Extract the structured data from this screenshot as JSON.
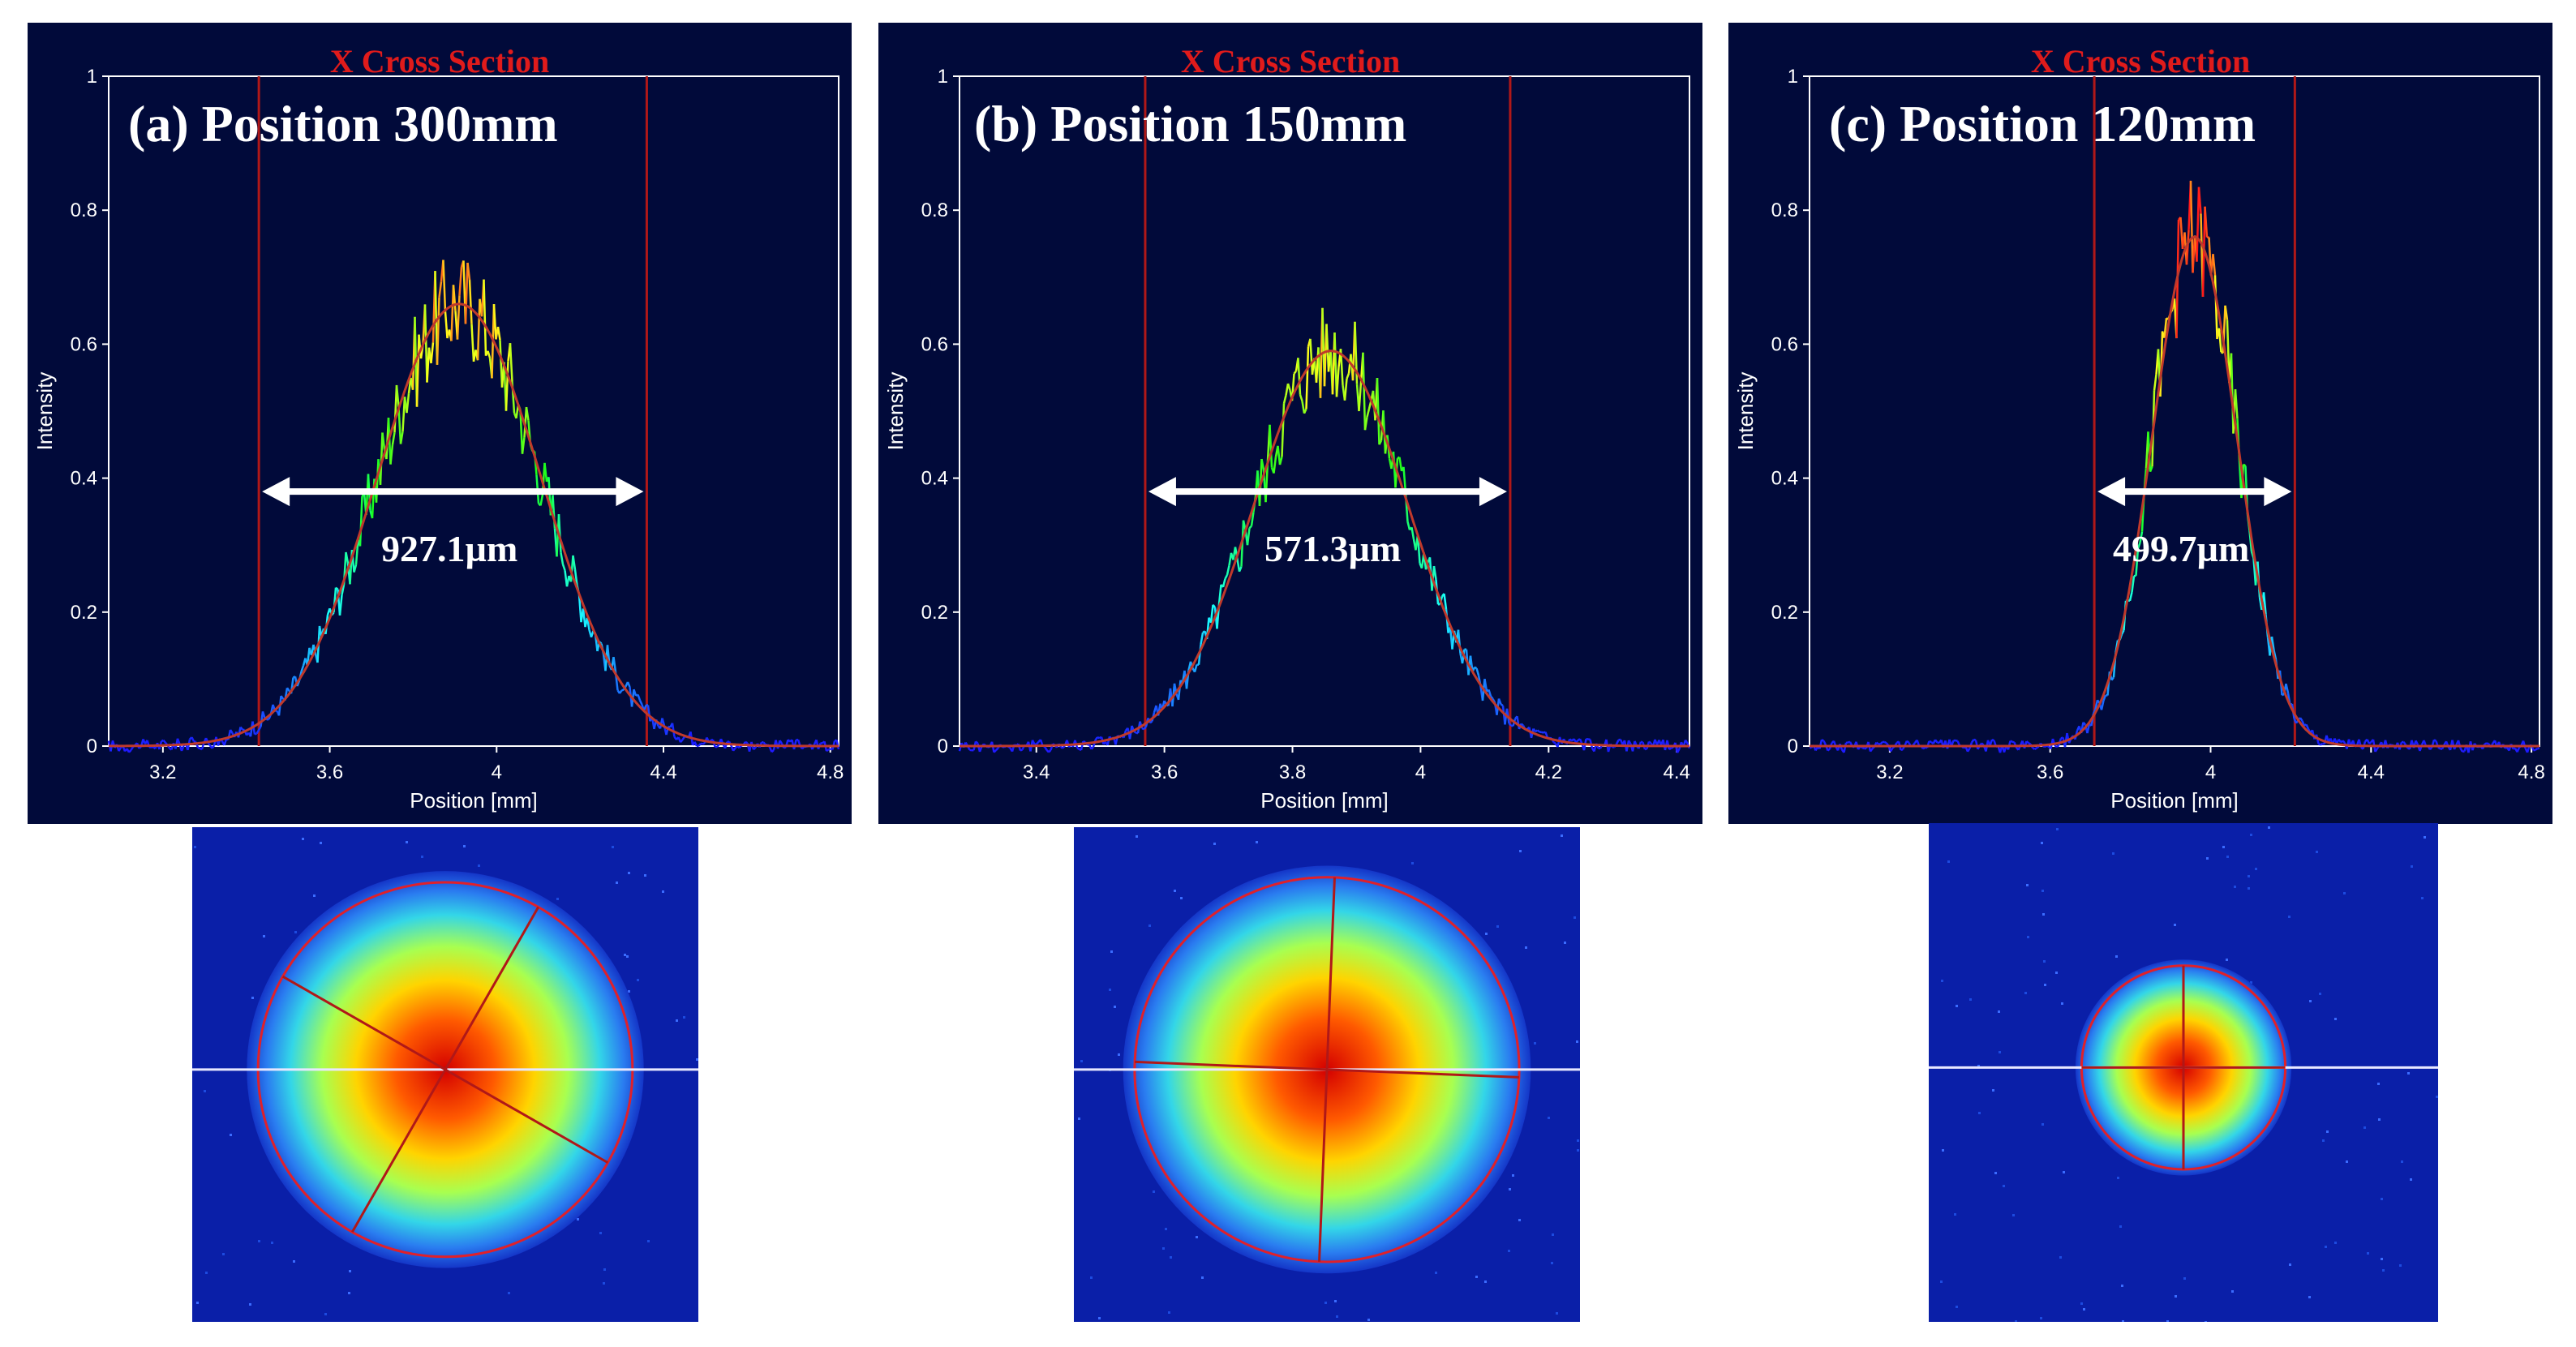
{
  "chart_data": [
    {
      "type": "line",
      "panel_label": "(a) Position 300mm",
      "title": "X Cross Section",
      "xlabel": "Position [mm]",
      "ylabel": "Intensity",
      "xlim": [
        3.07,
        4.82
      ],
      "ylim": [
        0,
        1
      ],
      "xticks": [
        "3.2",
        "3.6",
        "4",
        "4.4",
        "4.8"
      ],
      "yticks": [
        "0",
        "0.2",
        "0.4",
        "0.6",
        "0.8",
        "1"
      ],
      "gaussian": {
        "center": 3.91,
        "peak": 0.66,
        "sigma": 0.197
      },
      "cursor_lines": [
        3.43,
        4.36
      ],
      "arrow_y": 0.38,
      "width_label": "927.1µm",
      "beam_radius_fraction": 0.37
    },
    {
      "type": "line",
      "panel_label": "(b) Position 150mm",
      "title": "X Cross Section",
      "xlabel": "Position [mm]",
      "ylabel": "Intensity",
      "xlim": [
        3.28,
        4.42
      ],
      "ylim": [
        0,
        1
      ],
      "xticks": [
        "3.4",
        "3.6",
        "3.8",
        "4",
        "4.2",
        "4.4"
      ],
      "yticks": [
        "0",
        "0.2",
        "0.4",
        "0.6",
        "0.8",
        "1"
      ],
      "gaussian": {
        "center": 3.86,
        "peak": 0.59,
        "sigma": 0.121
      },
      "cursor_lines": [
        3.57,
        4.14
      ],
      "arrow_y": 0.38,
      "width_label": "571.3µm",
      "beam_radius_fraction": 0.38
    },
    {
      "type": "line",
      "panel_label": "(c) Position 120mm",
      "title": "X Cross Section",
      "xlabel": "Position [mm]",
      "ylabel": "Intensity",
      "xlim": [
        3.0,
        4.82
      ],
      "ylim": [
        0,
        1
      ],
      "xticks": [
        "3.2",
        "3.6",
        "4",
        "4.4",
        "4.8"
      ],
      "yticks": [
        "0",
        "0.2",
        "0.4",
        "0.6",
        "0.8",
        "1"
      ],
      "gaussian": {
        "center": 3.96,
        "peak": 0.76,
        "sigma": 0.106
      },
      "cursor_lines": [
        3.71,
        4.21
      ],
      "arrow_y": 0.38,
      "width_label": "499.7µm",
      "beam_radius_fraction": 0.2
    }
  ],
  "colors": {
    "panel_bg": "#010a3a",
    "title": "#e01b1b",
    "fit_line": "#c0392b",
    "cursor": "#b01818",
    "beam_bg": "#0a1fa8"
  }
}
